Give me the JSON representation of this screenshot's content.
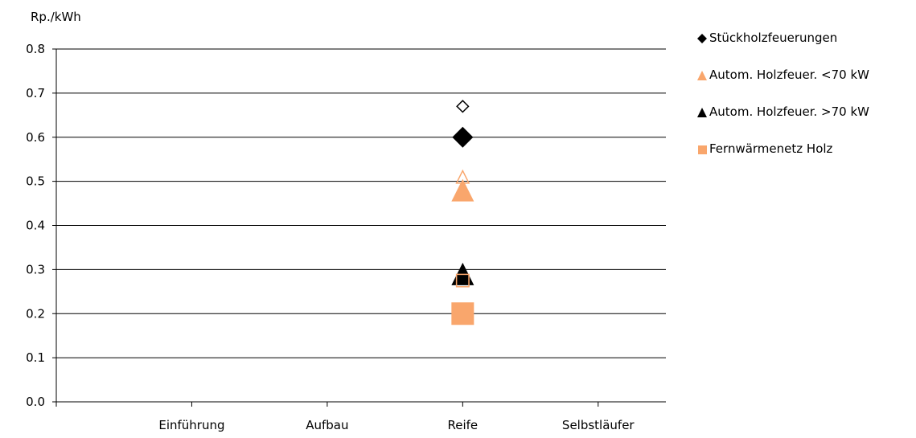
{
  "chart_data": {
    "type": "scatter",
    "title": "",
    "xlabel": "",
    "ylabel": "Rp./kWh",
    "categories": [
      "",
      "Einführung",
      "Aufbau",
      "Reife",
      "Selbstläufer"
    ],
    "ylim": [
      0.0,
      0.8
    ],
    "yticks": [
      "0.0",
      "0.1",
      "0.2",
      "0.3",
      "0.4",
      "0.5",
      "0.6",
      "0.7",
      "0.8"
    ],
    "grid": true,
    "legend_position": "right",
    "series": [
      {
        "name": "Stückholzfeuerungen",
        "marker": "diamond",
        "color": "#000000",
        "points": [
          {
            "category": "Reife",
            "y": 0.6,
            "filled": true
          },
          {
            "category": "Reife",
            "y": 0.67,
            "filled": false
          }
        ]
      },
      {
        "name": "Autom. Holzfeuer. <70 kW",
        "marker": "triangle",
        "color": "#F9A66C",
        "points": [
          {
            "category": "Reife",
            "y": 0.48,
            "filled": true
          },
          {
            "category": "Reife",
            "y": 0.51,
            "filled": false
          }
        ]
      },
      {
        "name": "Autom. Holzfeuer. >70 kW",
        "marker": "triangle",
        "color": "#000000",
        "points": [
          {
            "category": "Reife",
            "y": 0.29,
            "filled": true
          }
        ]
      },
      {
        "name": "Fernwärmenetz Holz",
        "marker": "square",
        "color": "#F9A66C",
        "points": [
          {
            "category": "Reife",
            "y": 0.2,
            "filled": true
          },
          {
            "category": "Reife",
            "y": 0.275,
            "filled": false
          }
        ]
      }
    ]
  }
}
